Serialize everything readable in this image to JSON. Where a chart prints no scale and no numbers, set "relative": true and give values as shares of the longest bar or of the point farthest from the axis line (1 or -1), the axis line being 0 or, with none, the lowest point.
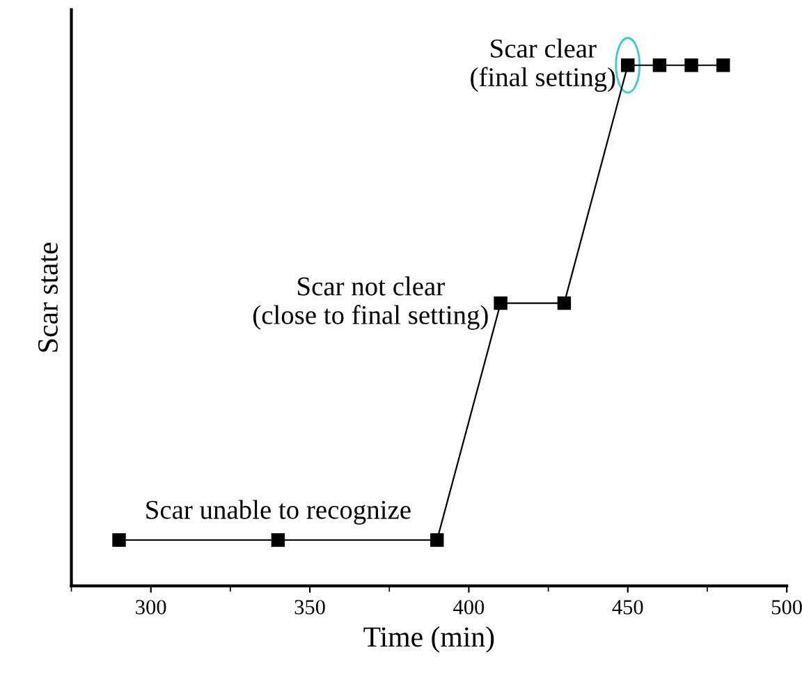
{
  "chart_data": {
    "type": "line",
    "xlabel": "Time (min)",
    "ylabel": "Scar state",
    "relative": true,
    "x": [
      290,
      340,
      390,
      410,
      430,
      450,
      460,
      470,
      480
    ],
    "series": [
      {
        "color": "#000000",
        "values": [
          0.088,
          0.088,
          0.088,
          0.543,
          0.543,
          1,
          1,
          1,
          1
        ]
      }
    ],
    "marker": "square",
    "line_style": "solid",
    "xlim": [
      275,
      500
    ],
    "xticks": [
      300,
      350,
      400,
      450,
      500
    ],
    "annotations": [
      {
        "text": "Scar unable to recognize",
        "x": 340,
        "y": 0.088
      },
      {
        "text": "Scar not clear\n(close to final setting)",
        "x": 410,
        "y": 0.543
      },
      {
        "text": "Scar clear\n(final setting)",
        "x": 450,
        "y": 1
      }
    ]
  }
}
